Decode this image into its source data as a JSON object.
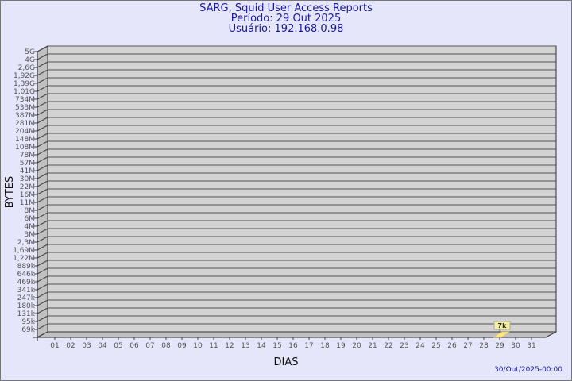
{
  "chart_data": {
    "type": "bar",
    "title": "SARG, Squid User Access Reports",
    "subtitle": [
      "Período: 29 Out 2025",
      "Usuário: 192.168.0.98"
    ],
    "xlabel": "DIAS",
    "ylabel": "BYTES",
    "y_scale": "log",
    "y_tick_labels": [
      "5G",
      "4G",
      "2,6G",
      "1,92G",
      "1,39G",
      "1,01G",
      "734M",
      "533M",
      "387M",
      "281M",
      "204M",
      "148M",
      "108M",
      "78M",
      "57M",
      "41M",
      "30M",
      "22M",
      "16M",
      "11M",
      "8M",
      "6M",
      "4M",
      "3M",
      "2,3M",
      "1,69M",
      "1,22M",
      "889k",
      "646k",
      "469k",
      "341k",
      "247k",
      "180k",
      "131k",
      "95k",
      "69k"
    ],
    "categories": [
      "01",
      "02",
      "03",
      "04",
      "05",
      "06",
      "07",
      "08",
      "09",
      "10",
      "11",
      "12",
      "13",
      "14",
      "15",
      "16",
      "17",
      "18",
      "19",
      "20",
      "21",
      "22",
      "23",
      "24",
      "25",
      "26",
      "27",
      "28",
      "29",
      "30",
      "31"
    ],
    "values": [
      null,
      null,
      null,
      null,
      null,
      null,
      null,
      null,
      null,
      null,
      null,
      null,
      null,
      null,
      null,
      null,
      null,
      null,
      null,
      null,
      null,
      null,
      null,
      null,
      null,
      null,
      null,
      null,
      7000,
      null,
      null
    ],
    "data_labels": {
      "29": "7k"
    },
    "grid": true,
    "colors": {
      "background": "#e6e6fa",
      "plot": "#d3d3d3",
      "wall": "#c0c0c0",
      "bar": "#ffe680",
      "label_box": "#f5f0a0",
      "title": "#1a1a9c"
    }
  },
  "footer": {
    "timestamp": "30/Out/2025-00:00"
  }
}
